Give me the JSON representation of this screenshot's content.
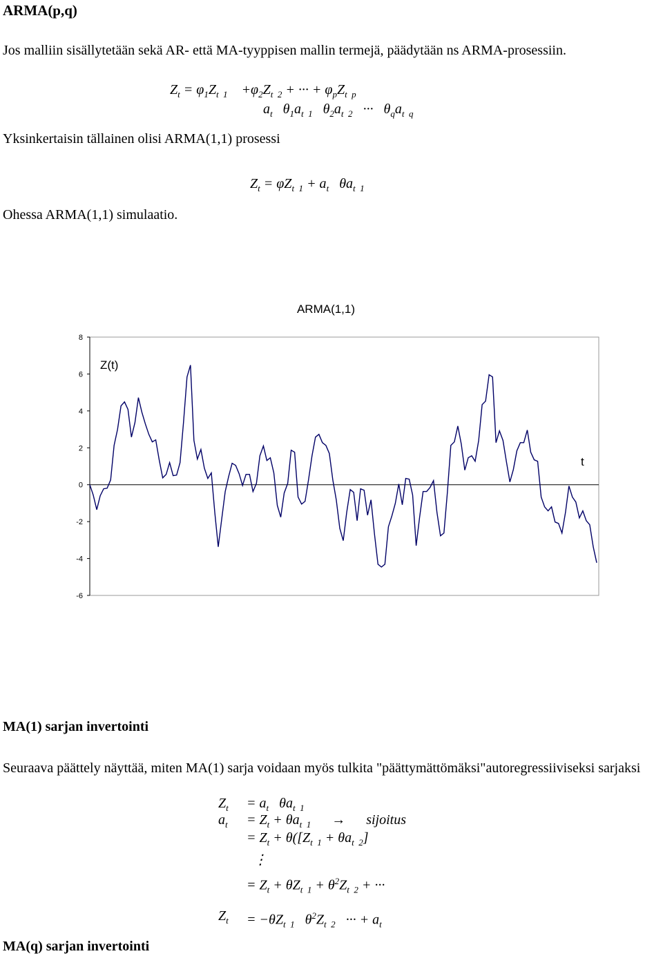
{
  "heading": "ARMA(p,q)",
  "intro": "Jos malliin sisällytetään sekä AR- että MA-tyyppisen mallin termejä, päädytään ns ARMA-prosessiin.",
  "eq_general_1": [
    "Z",
    {
      "sub": "t"
    },
    " = φ",
    {
      "sub": "1"
    },
    "Z",
    {
      "sub": "t  1"
    },
    "    +φ",
    {
      "sub": "2"
    },
    "Z",
    {
      "sub": "t  2"
    },
    " + ··· + φ",
    {
      "sub": "p"
    },
    "Z",
    {
      "sub": "t  p"
    }
  ],
  "eq_general_2": [
    "a",
    {
      "sub": "t"
    },
    "   θ",
    {
      "sub": "1"
    },
    "a",
    {
      "sub": "t  1"
    },
    "   θ",
    {
      "sub": "2"
    },
    "a",
    {
      "sub": "t  2"
    },
    "   ···   θ",
    {
      "sub": "q"
    },
    "a",
    {
      "sub": "t  q"
    }
  ],
  "simplest": "Yksinkertaisin tällainen olisi ARMA(1,1) prosessi",
  "eq_arma11": [
    "Z",
    {
      "sub": "t"
    },
    " = φZ",
    {
      "sub": "t  1"
    },
    " + a",
    {
      "sub": "t"
    },
    "   θa",
    {
      "sub": "t  1"
    }
  ],
  "simulation": "Ohessa ARMA(1,1) simulaatio.",
  "chart_data": {
    "type": "line",
    "title": "ARMA(1,1)",
    "y_label": "Z(t)",
    "x_label": "t",
    "ylim": [
      -6,
      8
    ],
    "yticks": [
      8,
      6,
      4,
      2,
      0,
      -2,
      -4,
      -6
    ],
    "color": "#000066",
    "values": [
      0,
      -0.56,
      -1.35,
      -0.6,
      -0.22,
      -0.19,
      0.26,
      2.13,
      3.0,
      4.27,
      4.49,
      4.08,
      2.58,
      3.37,
      4.72,
      3.93,
      3.3,
      2.73,
      2.32,
      2.43,
      1.35,
      0.37,
      0.56,
      1.2,
      0.49,
      0.52,
      1.2,
      3.37,
      5.84,
      6.48,
      2.4,
      1.39,
      1.91,
      0.9,
      0.34,
      0.64,
      -1.5,
      -3.37,
      -1.87,
      -0.37,
      0.45,
      1.16,
      1.05,
      0.6,
      -0.04,
      0.56,
      0.56,
      -0.37,
      0.07,
      1.57,
      2.1,
      1.31,
      1.46,
      0.64,
      -1.12,
      -1.76,
      -0.45,
      0.07,
      1.87,
      1.76,
      -0.67,
      -1.05,
      -0.9,
      0.26,
      1.57,
      2.58,
      2.73,
      2.28,
      2.13,
      1.69,
      0.26,
      -0.82,
      -2.36,
      -3.03,
      -1.5,
      -0.26,
      -0.41,
      -1.95,
      -0.22,
      -0.3,
      -1.65,
      -0.82,
      -2.66,
      -4.31,
      -4.46,
      -4.31,
      -2.28,
      -1.69,
      -1.01,
      0.04,
      -1.09,
      0.34,
      0.3,
      -0.56,
      -3.3,
      -1.76,
      -0.37,
      -0.37,
      -0.15,
      0.22,
      -1.5,
      -2.77,
      -2.62,
      -0.41,
      2.13,
      2.32,
      3.18,
      2.21,
      0.79,
      1.46,
      1.57,
      1.27,
      2.4,
      4.34,
      4.53,
      5.96,
      5.84,
      2.28,
      2.92,
      2.4,
      1.24,
      0.15,
      0.82,
      1.84,
      2.28,
      2.28,
      2.96,
      1.76,
      1.35,
      1.27,
      -0.67,
      -1.2,
      -1.42,
      -1.2,
      -2.02,
      -2.1,
      -2.62,
      -1.5,
      -0.07,
      -0.67,
      -0.94,
      -1.8,
      -1.42,
      -1.95,
      -2.17,
      -3.37,
      -4.23
    ]
  },
  "ma1_heading": "MA(1) sarjan invertointi",
  "ma1_text": "Seuraava päättely näyttää, miten MA(1) sarja voidaan myös tulkita \"päättymättömäksi\"autoregressiiviseksi sarjaksi",
  "derivation": [
    {
      "lhs": [
        "Z",
        {
          "sub": "t"
        }
      ],
      "rhs": [
        "= a",
        {
          "sub": "t"
        },
        "   θa",
        {
          "sub": "t  1"
        }
      ]
    },
    {
      "lhs": [
        "a",
        {
          "sub": "t"
        }
      ],
      "rhs": [
        "= Z",
        {
          "sub": "t"
        },
        " + θa",
        {
          "sub": "t  1"
        },
        "      →      sijoitus"
      ]
    },
    {
      "lhs": [],
      "rhs": [
        "= Z",
        {
          "sub": "t"
        },
        " + θ([Z",
        {
          "sub": "t  1"
        },
        " + θa",
        {
          "sub": "t  2"
        },
        "]"
      ]
    },
    {
      "lhs": [],
      "rhs": [
        "  ⋮"
      ]
    },
    {
      "lhs": [],
      "rhs": [
        "= Z",
        {
          "sub": "t"
        },
        " + θZ",
        {
          "sub": "t  1"
        },
        " + θ",
        {
          "sup": "2"
        },
        "Z",
        {
          "sub": "t  2"
        },
        " + ···"
      ]
    },
    {
      "lhs": [
        "Z",
        {
          "sub": "t"
        }
      ],
      "rhs": [
        "= −θZ",
        {
          "sub": "t  1"
        },
        "   θ",
        {
          "sup": "2"
        },
        "Z",
        {
          "sub": "t  2"
        },
        "   ··· + a",
        {
          "sub": "t"
        }
      ]
    }
  ],
  "maq_heading": "MA(q) sarjan invertointi"
}
